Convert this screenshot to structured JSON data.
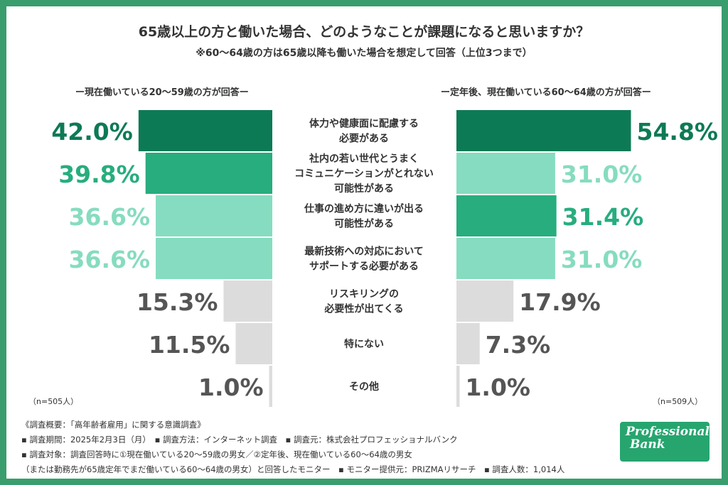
{
  "title": "65歳以上の方と働いた場合、どのようなことが課題になると思いますか？",
  "subtitle": "※60〜64歳の方は65歳以降も働いた場合を想定して回答（上位3つまで）",
  "left_header": "ー現在働いている20〜59歳の方が回答ー",
  "right_header": "ー定年後、現在働いている60〜64歳の方が回答ー",
  "left_n": "（n=505人）",
  "right_n": "（n=509人）",
  "colors": {
    "dark": "#0d7a56",
    "mid": "#27ad7e",
    "light": "#86dcc0",
    "gray": "#dcdcdc",
    "gray_text": "#555555"
  },
  "chart_data": {
    "type": "bar",
    "orientation": "horizontal-butterfly",
    "categories": [
      [
        "体力や健康面に配慮する",
        "必要がある"
      ],
      [
        "社内の若い世代とうまく",
        "コミュニケーションがとれない",
        "可能性がある"
      ],
      [
        "仕事の進め方に違いが出る",
        "可能性がある"
      ],
      [
        "最新技術への対応において",
        "サポートする必要がある"
      ],
      [
        "リスキリングの",
        "必要性が出てくる"
      ],
      [
        "特にない"
      ],
      [
        "その他"
      ]
    ],
    "series": [
      {
        "name": "現在働いている20〜59歳の方",
        "n": 505,
        "values": [
          42.0,
          39.8,
          36.6,
          36.6,
          15.3,
          11.5,
          1.0
        ],
        "labels": [
          "42.0%",
          "39.8%",
          "36.6%",
          "36.6%",
          "15.3%",
          "11.5%",
          "1.0%"
        ],
        "shades": [
          "dark",
          "mid",
          "light",
          "light",
          "gray",
          "gray",
          "gray"
        ]
      },
      {
        "name": "定年後、現在働いている60〜64歳の方",
        "n": 509,
        "values": [
          54.8,
          31.0,
          31.4,
          31.0,
          17.9,
          7.3,
          1.0
        ],
        "labels": [
          "54.8%",
          "31.0%",
          "31.4%",
          "31.0%",
          "17.9%",
          "7.3%",
          "1.0%"
        ],
        "shades": [
          "dark",
          "light",
          "mid",
          "light",
          "gray",
          "gray",
          "gray"
        ]
      }
    ],
    "xlim": [
      0,
      60
    ],
    "unit": "%"
  },
  "footer": {
    "line1": "《調査概要：「高年齢者雇用」に関する意識調査》",
    "line2": "▪ 調査期間：2025年2月3日（月）　▪ 調査方法：インターネット調査　▪ 調査元：株式会社プロフェッショナルバンク",
    "line3": "▪ 調査対象：調査回答時に①現在働いている20〜59歳の男女／②定年後、現在働いている60〜64歳の男女",
    "line4": "（または勤務先が65歳定年でまだ働いている60〜64歳の男女）と回答したモニター　▪ モニター提供元：PRIZMAリサーチ　▪ 調査人数：1,014人"
  },
  "logo": {
    "line1": "Professional",
    "line2": "Bank"
  }
}
